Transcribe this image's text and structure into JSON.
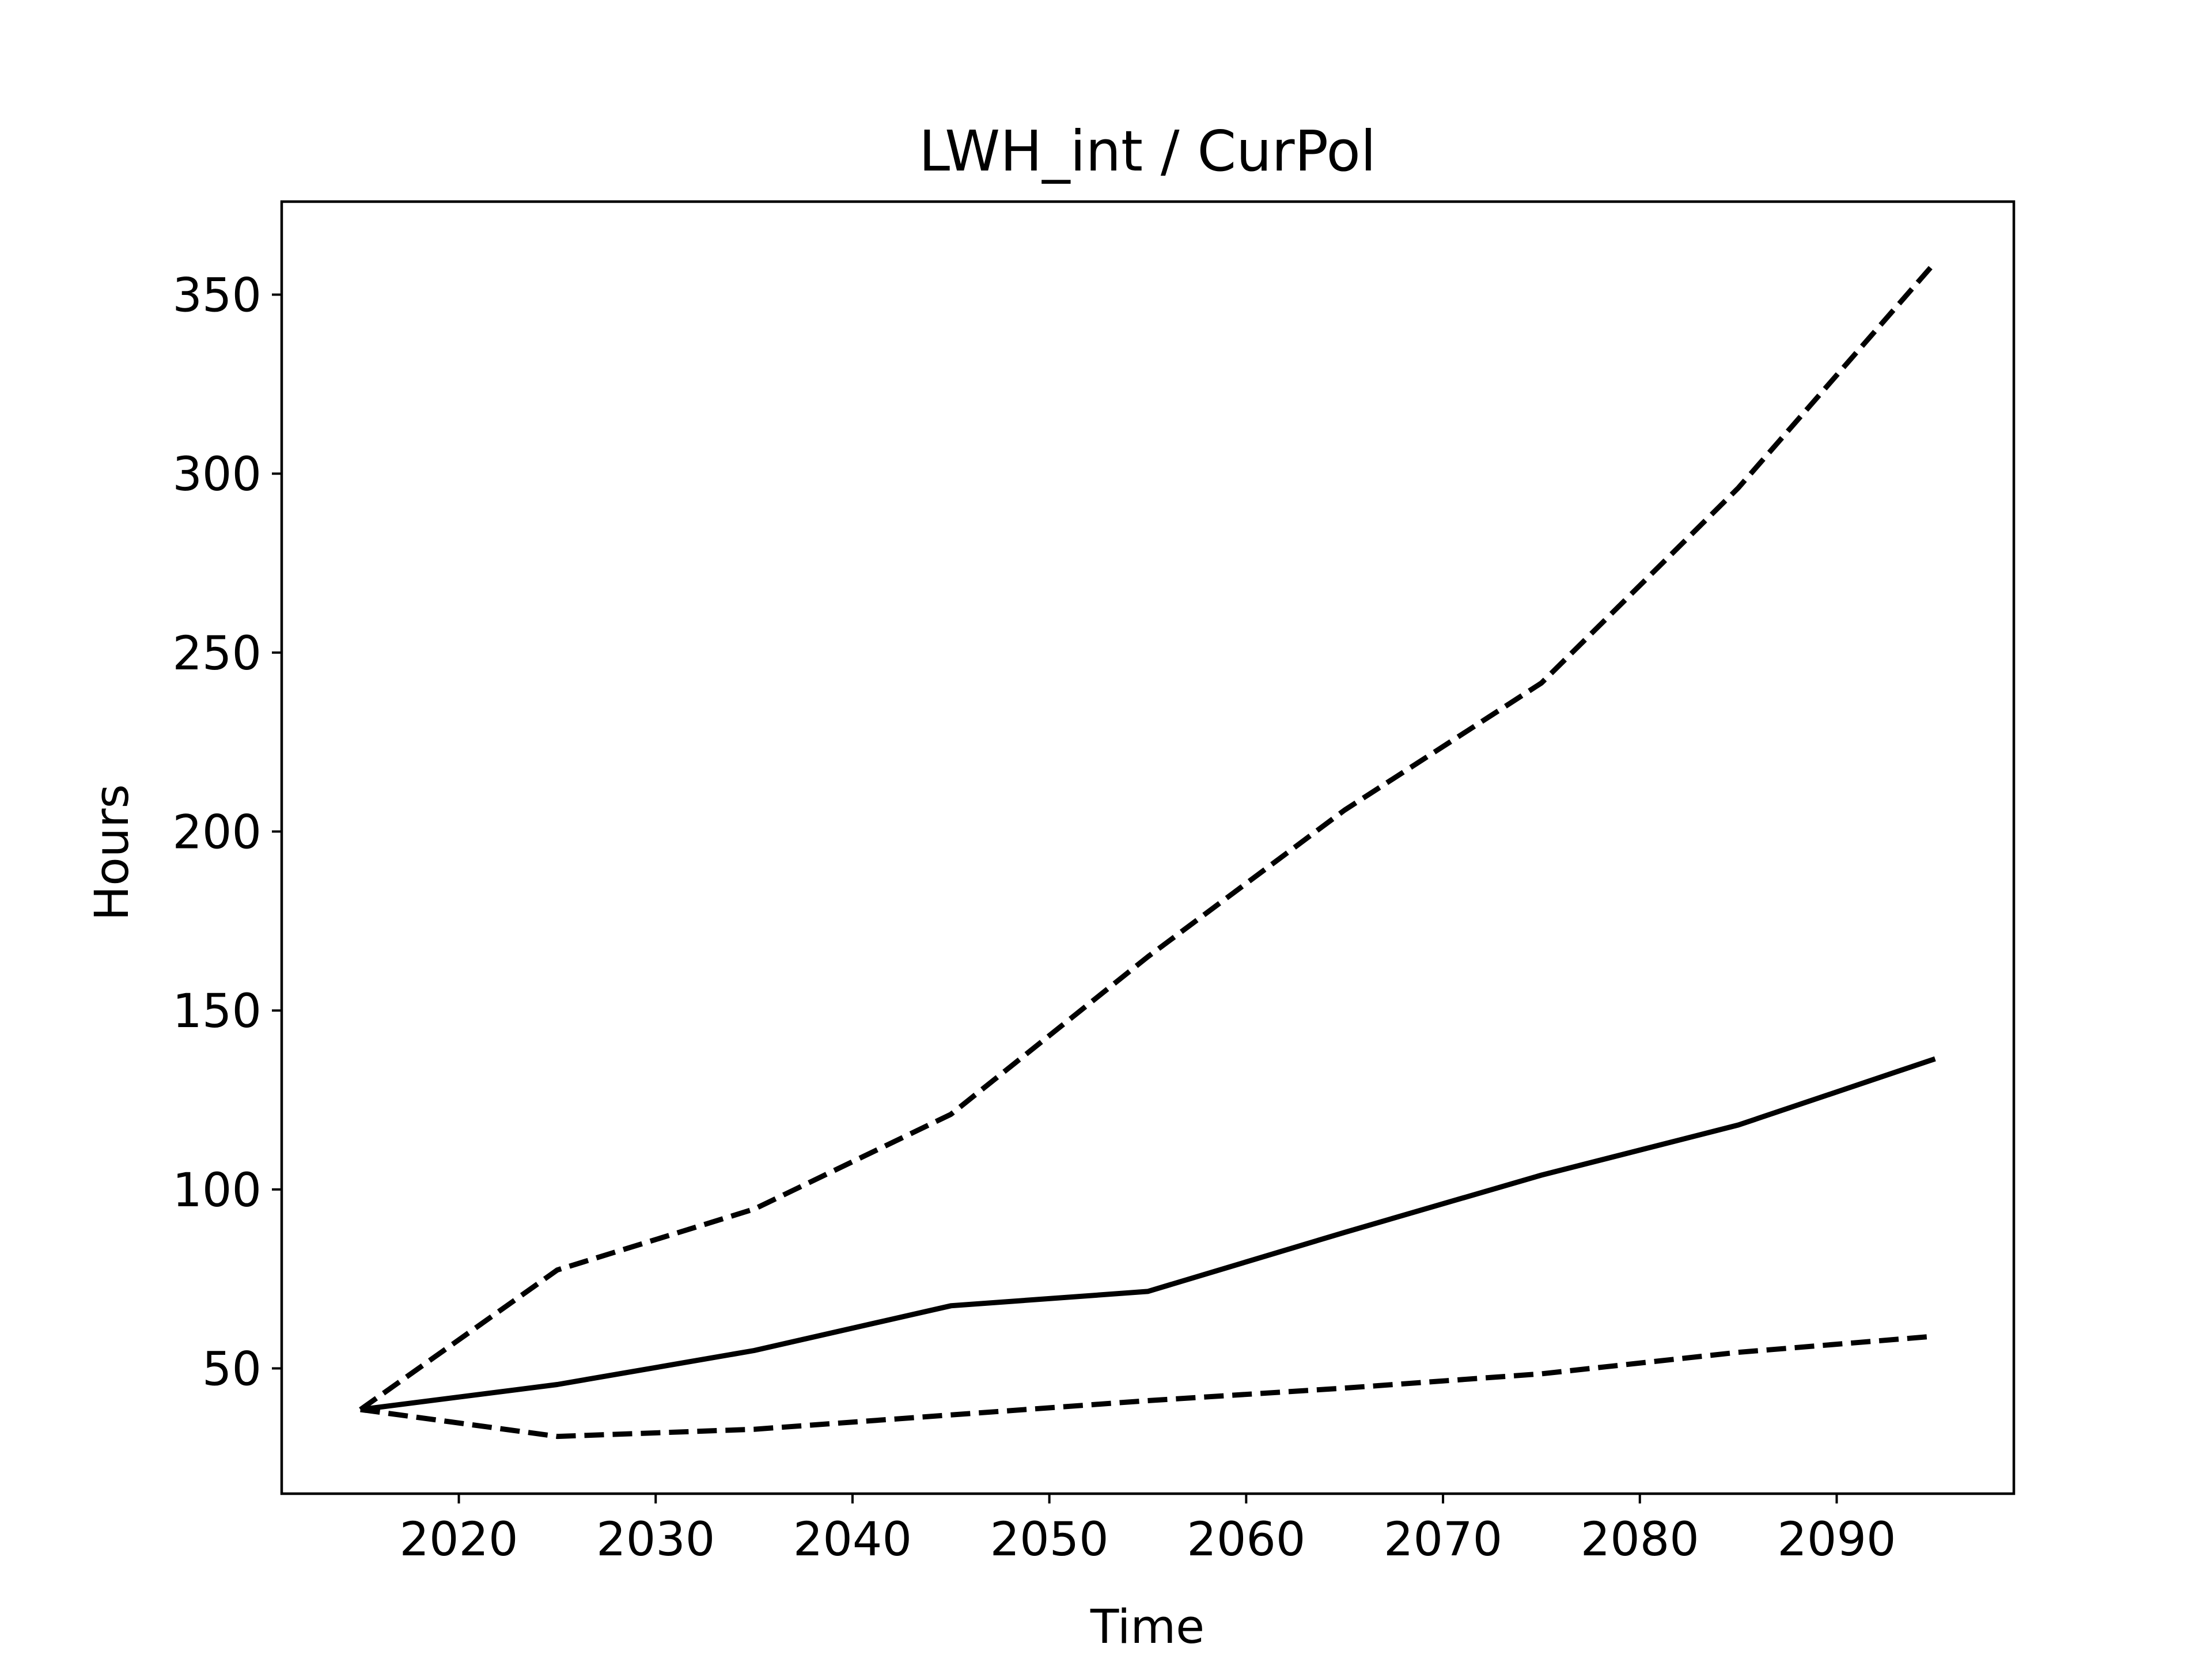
{
  "chart_data": {
    "type": "line",
    "title": "LWH_int / CurPol",
    "xlabel": "Time",
    "ylabel": "Hours",
    "xlim": [
      2011,
      2099
    ],
    "ylim": [
      15,
      376
    ],
    "xticks": [
      2020,
      2030,
      2040,
      2050,
      2060,
      2070,
      2080,
      2090
    ],
    "yticks": [
      50,
      100,
      150,
      200,
      250,
      300,
      350
    ],
    "grid": false,
    "legend": "none",
    "x": [
      2015,
      2025,
      2035,
      2045,
      2055,
      2065,
      2075,
      2085,
      2095
    ],
    "series": [
      {
        "style": "solid",
        "color": "#000000",
        "values": [
          38.5,
          45.5,
          55,
          67.5,
          71.5,
          88,
          104,
          118,
          136.5
        ]
      },
      {
        "style": "dashed",
        "color": "#000000",
        "values": [
          38.5,
          77.5,
          94.5,
          121,
          165,
          206,
          241.5,
          296,
          359
        ]
      },
      {
        "style": "dashed",
        "color": "#000000",
        "values": [
          38.5,
          31,
          33,
          37,
          41,
          44.5,
          48.5,
          54.5,
          59
        ]
      }
    ]
  }
}
